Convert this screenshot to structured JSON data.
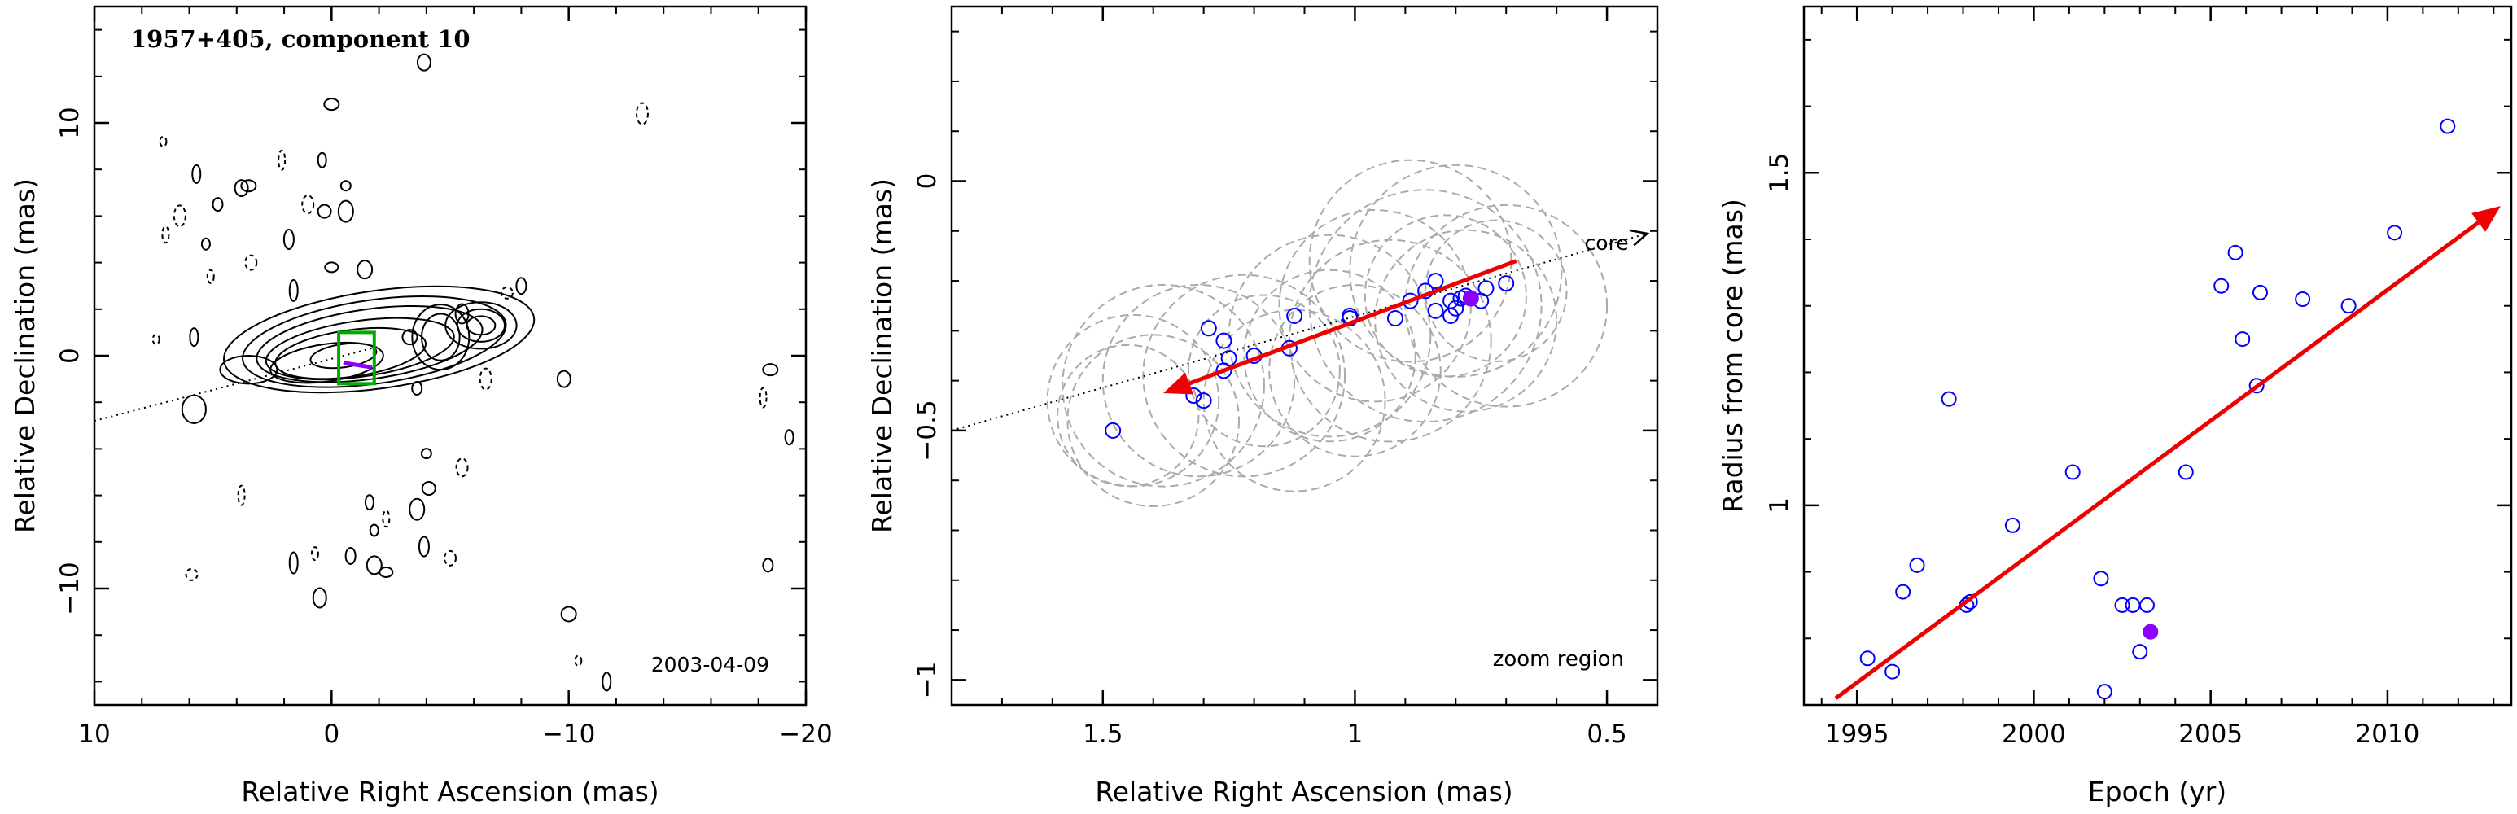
{
  "chart_data": [
    {
      "type": "contour",
      "title": "1957+405, component 10",
      "date_label": "2003-04-09",
      "xlabel": "Relative Right Ascension (mas)",
      "ylabel": "Relative Declination (mas)",
      "xlim": [
        10,
        -20
      ],
      "ylim": [
        -15,
        15
      ],
      "xticks": [
        10,
        0,
        -10,
        -20
      ],
      "xtick_labels": [
        "10",
        "0",
        "−10",
        "−20"
      ],
      "yticks": [
        -10,
        0,
        10
      ],
      "ytick_labels": [
        "−10",
        "0",
        "10"
      ],
      "jet_axis": {
        "from": [
          10,
          -2.8
        ],
        "to": [
          -2,
          0.4
        ]
      },
      "core_contours": [
        {
          "cx": -0.5,
          "cy": 0.0,
          "rx": 1.4,
          "ry": 0.5
        },
        {
          "cx": 0.2,
          "cy": -0.3,
          "rx": 2.4,
          "ry": 0.8
        },
        {
          "cx": -0.8,
          "cy": 0.1,
          "rx": 3.2,
          "ry": 1.0
        },
        {
          "cx": -1.2,
          "cy": 0.3,
          "rx": 4.0,
          "ry": 1.2
        },
        {
          "cx": -1.6,
          "cy": 0.5,
          "rx": 4.8,
          "ry": 1.5
        },
        {
          "cx": -1.8,
          "cy": 0.6,
          "rx": 5.6,
          "ry": 1.8
        },
        {
          "cx": -2.0,
          "cy": 0.7,
          "rx": 6.6,
          "ry": 2.1
        }
      ],
      "feature_contours": [
        {
          "cx": -6.3,
          "cy": 1.3,
          "rx": 0.6,
          "ry": 0.4
        },
        {
          "cx": -6.3,
          "cy": 1.3,
          "rx": 1.0,
          "ry": 0.7
        },
        {
          "cx": -6.3,
          "cy": 1.3,
          "rx": 1.5,
          "ry": 1.0
        },
        {
          "cx": -4.6,
          "cy": 0.8,
          "rx": 0.8,
          "ry": 1.0
        },
        {
          "cx": -4.6,
          "cy": 0.8,
          "rx": 1.2,
          "ry": 1.4
        },
        {
          "cx": 3.5,
          "cy": -0.6,
          "rx": 1.2,
          "ry": 0.6
        },
        {
          "cx": 5.8,
          "cy": -2.3,
          "rx": 0.5,
          "ry": 0.6
        }
      ],
      "noise_contours": [
        [
          7.1,
          9.2
        ],
        [
          5.7,
          7.8
        ],
        [
          4.8,
          6.5
        ],
        [
          6.4,
          6.0
        ],
        [
          3.8,
          7.2
        ],
        [
          3.5,
          7.3
        ],
        [
          2.1,
          8.4
        ],
        [
          0.4,
          8.4
        ],
        [
          -0.6,
          7.3
        ],
        [
          1.0,
          6.5
        ],
        [
          0.3,
          6.2
        ],
        [
          -0.6,
          6.2
        ],
        [
          7.0,
          5.2
        ],
        [
          5.3,
          4.8
        ],
        [
          1.8,
          5.0
        ],
        [
          3.4,
          4.0
        ],
        [
          0.0,
          3.8
        ],
        [
          -1.4,
          3.7
        ],
        [
          5.1,
          3.4
        ],
        [
          1.6,
          2.8
        ],
        [
          -8.0,
          3.0
        ],
        [
          -7.4,
          2.7
        ],
        [
          -5.5,
          1.8
        ],
        [
          -3.3,
          0.8
        ],
        [
          7.4,
          0.7
        ],
        [
          5.8,
          0.8
        ],
        [
          -3.6,
          -1.4
        ],
        [
          -6.5,
          -1.0
        ],
        [
          -9.8,
          -1.0
        ],
        [
          -18.5,
          -0.6
        ],
        [
          -18.2,
          -1.8
        ],
        [
          -19.3,
          -3.5
        ],
        [
          -4.0,
          -4.2
        ],
        [
          -5.5,
          -4.8
        ],
        [
          -4.1,
          -5.7
        ],
        [
          -3.6,
          -6.6
        ],
        [
          -2.3,
          -7.0
        ],
        [
          -1.8,
          -7.5
        ],
        [
          -3.9,
          -8.2
        ],
        [
          -5.0,
          -8.7
        ],
        [
          -2.3,
          -9.3
        ],
        [
          -1.8,
          -9.0
        ],
        [
          0.7,
          -8.5
        ],
        [
          1.6,
          -8.9
        ],
        [
          -0.8,
          -8.6
        ],
        [
          5.9,
          -9.4
        ],
        [
          0.5,
          -10.4
        ],
        [
          -10.0,
          -11.1
        ],
        [
          -10.4,
          -13.1
        ],
        [
          -11.6,
          -14.0
        ],
        [
          -18.4,
          -9.0
        ],
        [
          -13.1,
          10.4
        ],
        [
          -3.9,
          12.6
        ],
        [
          0.0,
          10.8
        ],
        [
          3.8,
          -6.0
        ],
        [
          -1.6,
          -6.3
        ]
      ],
      "zoom_box": {
        "x0": -0.3,
        "x1": -1.8,
        "y0": 1.0,
        "y1": -1.2
      },
      "zoom_box_color": "#00aa00",
      "marker_color": "#8b00ff"
    },
    {
      "type": "scatter",
      "corner_label": "zoom region",
      "core_label": "core",
      "xlabel": "Relative Right Ascension (mas)",
      "ylabel": "Relative Declination (mas)",
      "xlim": [
        1.8,
        0.4
      ],
      "ylim": [
        -1.05,
        0.35
      ],
      "xticks": [
        1.5,
        1,
        0.5
      ],
      "xtick_labels": [
        "1.5",
        "1",
        "0.5"
      ],
      "yticks": [
        0,
        -0.5,
        -1
      ],
      "ytick_labels": [
        "0",
        "−0.5",
        "−1"
      ],
      "points": [
        [
          1.48,
          -0.5
        ],
        [
          1.32,
          -0.43
        ],
        [
          1.3,
          -0.44
        ],
        [
          1.29,
          -0.295
        ],
        [
          1.26,
          -0.32
        ],
        [
          1.26,
          -0.38
        ],
        [
          1.25,
          -0.355
        ],
        [
          1.2,
          -0.35
        ],
        [
          1.13,
          -0.335
        ],
        [
          1.12,
          -0.27
        ],
        [
          1.01,
          -0.27
        ],
        [
          1.01,
          -0.275
        ],
        [
          0.89,
          -0.24
        ],
        [
          0.86,
          -0.22
        ],
        [
          0.92,
          -0.275
        ],
        [
          0.84,
          -0.26
        ],
        [
          0.84,
          -0.2
        ],
        [
          0.81,
          -0.24
        ],
        [
          0.8,
          -0.255
        ],
        [
          0.81,
          -0.27
        ],
        [
          0.78,
          -0.23
        ],
        [
          0.75,
          -0.24
        ],
        [
          0.74,
          -0.215
        ],
        [
          0.7,
          -0.205
        ],
        [
          0.79,
          -0.235
        ]
      ],
      "highlight_point": [
        0.77,
        -0.235
      ],
      "motion_arrow": {
        "from": [
          0.68,
          -0.16
        ],
        "to": [
          1.38,
          -0.425
        ]
      },
      "core_direction": {
        "from": [
          1.8,
          -0.5
        ],
        "to": [
          0.42,
          -0.105
        ]
      },
      "beam_circles": [
        [
          1.45,
          -0.47,
          0.14
        ],
        [
          1.44,
          -0.44,
          0.17
        ],
        [
          1.4,
          -0.48,
          0.17
        ],
        [
          1.38,
          -0.41,
          0.2
        ],
        [
          1.31,
          -0.4,
          0.19
        ],
        [
          1.22,
          -0.39,
          0.2
        ],
        [
          1.18,
          -0.38,
          0.15
        ],
        [
          1.12,
          -0.44,
          0.18
        ],
        [
          1.05,
          -0.35,
          0.17
        ],
        [
          1.05,
          -0.31,
          0.2
        ],
        [
          1.0,
          -0.38,
          0.17
        ],
        [
          0.96,
          -0.25,
          0.19
        ],
        [
          0.93,
          -0.32,
          0.2
        ],
        [
          0.89,
          -0.16,
          0.2
        ],
        [
          0.86,
          -0.25,
          0.23
        ],
        [
          0.82,
          -0.23,
          0.16
        ],
        [
          0.8,
          -0.18,
          0.21
        ],
        [
          0.78,
          -0.28,
          0.18
        ],
        [
          0.72,
          -0.22,
          0.14
        ],
        [
          0.7,
          -0.25,
          0.2
        ]
      ],
      "point_color": "#0000ff",
      "highlight_color": "#8b00ff",
      "arrow_color": "#ee0000",
      "circle_color": "#aaaaaa"
    },
    {
      "type": "scatter",
      "xlabel": "Epoch (yr)",
      "ylabel": "Radius from core (mas)",
      "xlim": [
        1993.5,
        2013.5
      ],
      "ylim": [
        0.7,
        1.75
      ],
      "xticks": [
        1995,
        2000,
        2005,
        2010
      ],
      "xtick_labels": [
        "1995",
        "2000",
        "2005",
        "2010"
      ],
      "yticks": [
        1,
        1.5
      ],
      "ytick_labels": [
        "1",
        "1.5"
      ],
      "x": [
        1995.3,
        1996.0,
        1996.3,
        1996.7,
        1997.6,
        1998.1,
        1998.2,
        1999.4,
        2001.1,
        2001.9,
        2002.0,
        2002.5,
        2002.8,
        2003.0,
        2003.2,
        2004.3,
        2005.3,
        2005.7,
        2005.9,
        2006.3,
        2006.4,
        2007.6,
        2008.9,
        2010.2,
        2011.7
      ],
      "y": [
        0.77,
        0.75,
        0.87,
        0.91,
        1.16,
        0.85,
        0.855,
        0.97,
        1.05,
        0.89,
        0.72,
        0.85,
        0.85,
        0.78,
        0.85,
        1.05,
        1.33,
        1.38,
        1.25,
        1.18,
        1.32,
        1.31,
        1.3,
        1.41,
        1.57
      ],
      "highlight_point": [
        2003.3,
        0.81
      ],
      "trend_arrow": {
        "from": [
          1994.4,
          0.71
        ],
        "to": [
          2013.2,
          1.45
        ]
      },
      "point_color": "#0000ff",
      "highlight_color": "#8b00ff",
      "arrow_color": "#ee0000"
    }
  ]
}
